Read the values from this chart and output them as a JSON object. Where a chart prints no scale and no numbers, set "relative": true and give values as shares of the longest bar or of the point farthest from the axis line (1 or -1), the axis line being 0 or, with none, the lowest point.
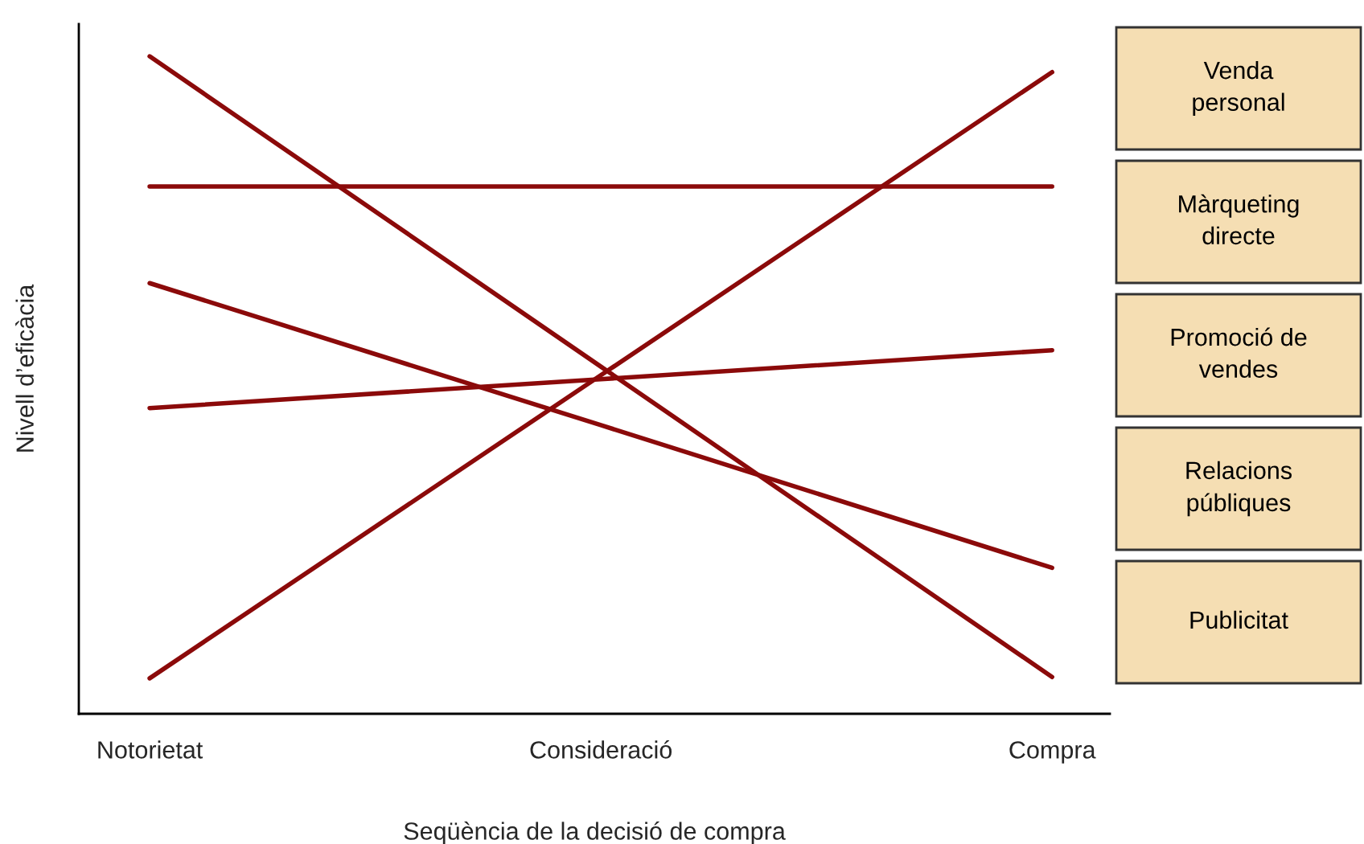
{
  "chart_data": {
    "type": "line",
    "relative": true,
    "xlabel": "Seqüència de la decisió de compra",
    "ylabel": "Nivell d’eficàcia",
    "categories": [
      "Notorietat",
      "Consideració",
      "Compra"
    ],
    "series": [
      {
        "name": "Venda\npersonal",
        "color": "#8b0a0a",
        "values": [
          0.054,
          0.515,
          0.976
        ]
      },
      {
        "name": "Màrqueting\ndirecte",
        "color": "#8b0a0a",
        "values": [
          0.802,
          0.802,
          0.802
        ]
      },
      {
        "name": "Promoció de\nvendes",
        "color": "#8b0a0a",
        "values": [
          0.465,
          0.509,
          0.553
        ]
      },
      {
        "name": "Relacions\npúbliques",
        "color": "#8b0a0a",
        "values": [
          0.655,
          0.439,
          0.222
        ]
      },
      {
        "name": "Publicitat",
        "color": "#8b0a0a",
        "values": [
          1.0,
          0.528,
          0.056
        ]
      }
    ],
    "legend": "right",
    "grid": false,
    "marker": "none",
    "line_style": "solid"
  }
}
